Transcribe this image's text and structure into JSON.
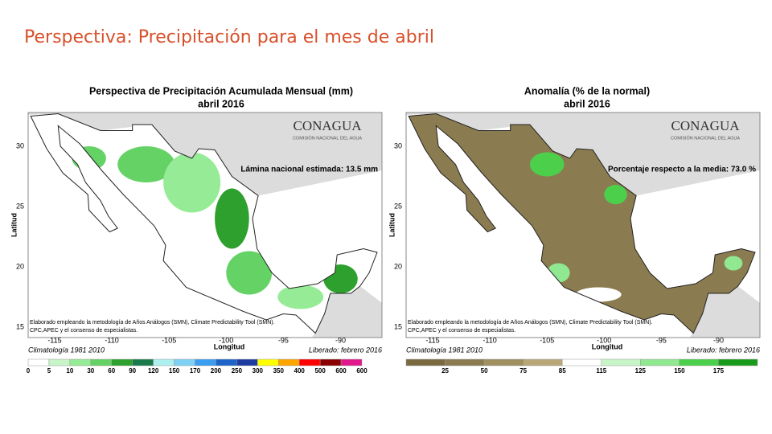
{
  "slide_title": "Perspectiva: Precipitación para el mes de abril",
  "maps": [
    {
      "title": "Perspectiva de Precipitación Acumulada Mensual (mm)",
      "subtitle": "abril 2016",
      "logo": "CONAGUA",
      "logo_sub": "COMISIÓN NACIONAL DEL AGUA",
      "annotation": "Lámina nacional estimada: 13.5 mm",
      "xlabel": "Longitud",
      "ylabel": "Latitud",
      "xticks": [
        -115,
        -110,
        -105,
        -100,
        -95,
        -90
      ],
      "yticks": [
        30,
        25,
        20,
        15
      ],
      "credit_1": "Elaborado empleando la metodología de Años Análogos (SMN), Climate Predictability Tool (SMN).",
      "credit_2": "CPC,APEC y el consenso de especialistas.",
      "climatology": "Climatología 1981 2010",
      "released": "Liberado: febrero 2016",
      "legend": {
        "labels": [
          "0",
          "5",
          "10",
          "30",
          "60",
          "90",
          "120",
          "150",
          "170",
          "200",
          "250",
          "300",
          "350",
          "400",
          "500",
          "600",
          "600"
        ],
        "colors": [
          "#ffffff",
          "#c8f5c8",
          "#96eb96",
          "#64d264",
          "#2da02d",
          "#1a7a4a",
          "#aef0f0",
          "#7fd0f5",
          "#3c9ef0",
          "#1e64c8",
          "#1e3ca0",
          "#ffff00",
          "#ffa500",
          "#ff0000",
          "#8b0000",
          "#e0188c"
        ]
      }
    },
    {
      "title": "Anomalía (% de la normal)",
      "subtitle": "abril 2016",
      "logo": "CONAGUA",
      "logo_sub": "COMISIÓN NACIONAL DEL AGUA",
      "annotation": "Porcentaje respecto a la media: 73.0 %",
      "xlabel": "Longitud",
      "ylabel": "Latitud",
      "xticks": [
        -115,
        -110,
        -105,
        -100,
        -95,
        -90
      ],
      "yticks": [
        30,
        25,
        20,
        15
      ],
      "credit_1": "Elaborado empleando la metodología de Años Análogos (SMN), Climate Predictability Tool (SMN).",
      "credit_2": "CPC,APEC y el consenso de especialistas.",
      "climatology": "Climatología 1981 2010",
      "released": "Liberado: febrero 2016",
      "legend": {
        "labels": [
          "25",
          "50",
          "75",
          "85",
          "115",
          "125",
          "150",
          "175"
        ],
        "colors": [
          "#7a6a40",
          "#8b7b50",
          "#a0905f",
          "#b8a878",
          "#ffffff",
          "#c8f5c8",
          "#90e890",
          "#4cd04c",
          "#1a9a1a"
        ]
      }
    }
  ]
}
